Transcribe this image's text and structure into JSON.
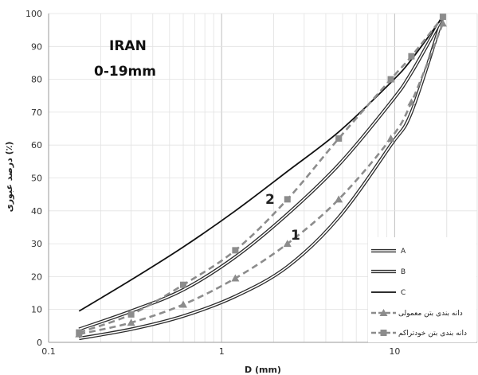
{
  "chart_data": {
    "type": "line",
    "xscale": "log",
    "xlim": [
      0.1,
      30
    ],
    "ylim": [
      0,
      100
    ],
    "xlabel": "D (mm)",
    "ylabel": "درصد عبوری (٪)",
    "x_ticks": [
      "0.1",
      "1",
      "10"
    ],
    "y_ticks": [
      "0",
      "10",
      "20",
      "30",
      "40",
      "50",
      "60",
      "70",
      "80",
      "90",
      "100"
    ],
    "grid": true,
    "annotations": {
      "country": "IRAN",
      "range": "0-19mm",
      "label_1": "1",
      "label_2": "2"
    },
    "legend_position": "bottom-right",
    "series": [
      {
        "name": "A",
        "style": "double",
        "x": [
          0.15,
          0.3,
          0.6,
          1.2,
          2.4,
          4.75,
          9.5,
          12.5,
          19
        ],
        "y": [
          1.2,
          4,
          8,
          14,
          23,
          38,
          60,
          70,
          99
        ]
      },
      {
        "name": "B",
        "style": "double",
        "x": [
          0.15,
          0.3,
          0.6,
          1.2,
          2.4,
          4.75,
          9.5,
          12.5,
          19
        ],
        "y": [
          4,
          9.5,
          16,
          26,
          39,
          54,
          73,
          82,
          99
        ]
      },
      {
        "name": "C",
        "style": "solid",
        "x": [
          0.15,
          0.3,
          0.6,
          1.2,
          2.4,
          4.75,
          9.5,
          12.5,
          19
        ],
        "y": [
          9.5,
          19,
          29,
          40,
          52,
          64,
          79,
          86,
          99
        ]
      },
      {
        "name": "دانه بندی بتن معمولی",
        "style": "dashed-triangle",
        "x": [
          0.15,
          0.3,
          0.6,
          1.2,
          2.4,
          4.75,
          9.5,
          12.5,
          19
        ],
        "y": [
          2.5,
          6,
          11.5,
          19.5,
          30,
          43.5,
          62,
          73,
          97
        ]
      },
      {
        "name": "دانه بندی بتن خودتراکم",
        "style": "dashed-square",
        "x": [
          0.15,
          0.3,
          0.6,
          1.2,
          2.4,
          4.75,
          9.5,
          12.5,
          19
        ],
        "y": [
          3,
          8.5,
          17.5,
          28,
          43.5,
          62,
          80,
          87,
          99
        ]
      }
    ]
  }
}
